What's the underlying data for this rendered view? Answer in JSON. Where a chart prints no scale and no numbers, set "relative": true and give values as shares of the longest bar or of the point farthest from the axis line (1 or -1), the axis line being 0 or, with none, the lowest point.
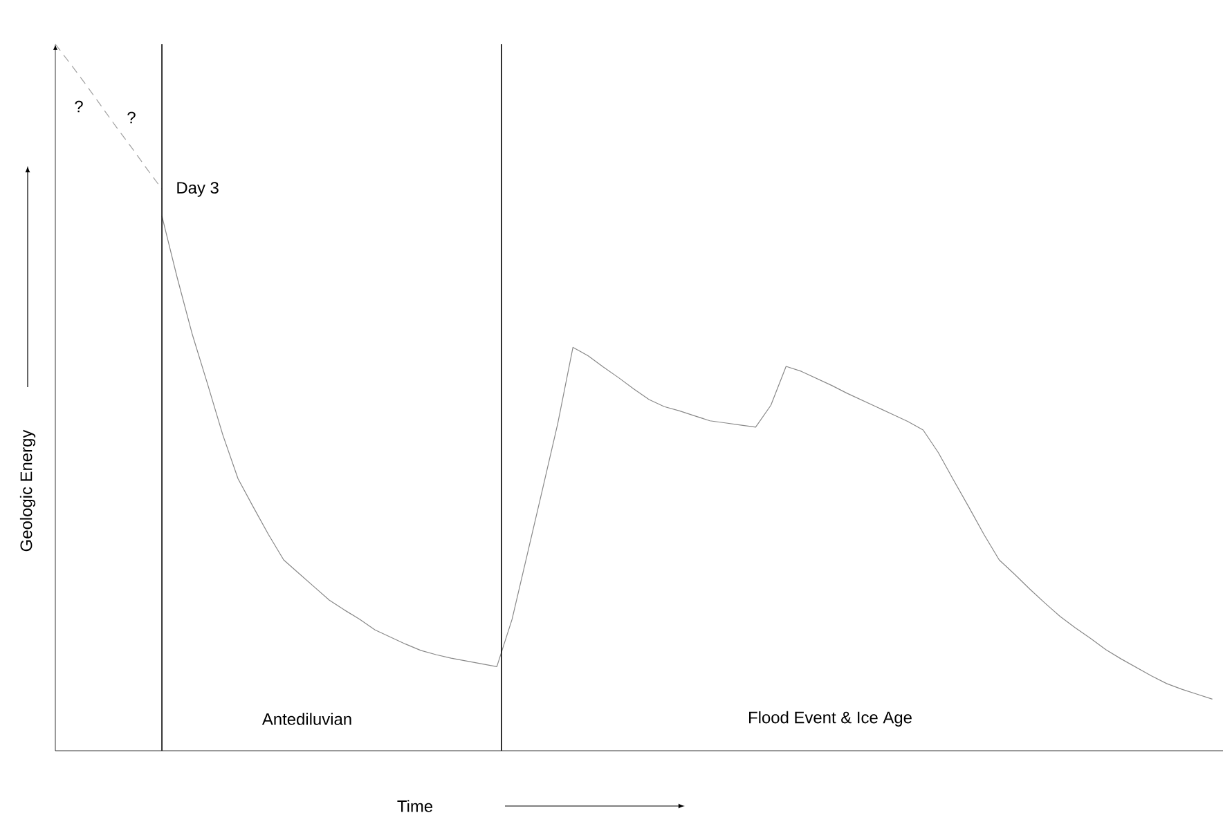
{
  "chart_data": {
    "type": "line",
    "relative": true,
    "xlabel": "Time",
    "ylabel": "Geologic Energy",
    "categories": [
      null,
      null,
      null,
      null,
      null,
      null,
      null,
      null,
      null,
      null,
      null,
      null,
      null,
      null,
      null,
      null,
      null,
      null,
      null,
      null,
      null,
      null,
      null,
      null,
      null,
      null,
      null,
      null,
      null,
      null,
      null,
      null,
      null,
      null,
      null,
      null,
      null,
      null,
      null,
      null,
      null,
      null,
      null,
      null,
      null,
      null,
      null,
      null,
      null,
      null,
      null,
      null,
      null,
      null,
      null,
      null,
      null,
      null,
      null,
      null,
      null,
      null,
      null,
      null,
      null,
      null,
      null,
      null,
      null,
      null,
      null,
      null,
      null,
      null,
      null,
      null,
      null
    ],
    "series": [
      {
        "color": "#a0a0a0",
        "line_style": "dashed",
        "values": [
          1.0,
          0.972,
          0.943,
          0.913,
          0.883,
          0.854,
          0.824,
          0.795,
          null,
          null,
          null,
          null,
          null,
          null,
          null,
          null,
          null,
          null,
          null,
          null,
          null,
          null,
          null,
          null,
          null,
          null,
          null,
          null,
          null,
          null,
          null,
          null,
          null,
          null,
          null,
          null,
          null,
          null,
          null,
          null,
          null,
          null,
          null,
          null,
          null,
          null,
          null,
          null,
          null,
          null,
          null,
          null,
          null,
          null,
          null,
          null,
          null,
          null,
          null,
          null,
          null,
          null,
          null,
          null,
          null,
          null,
          null,
          null,
          null,
          null,
          null,
          null,
          null,
          null,
          null,
          null,
          null
        ]
      },
      {
        "color": "#888888",
        "line_style": "solid",
        "values": [
          null,
          null,
          null,
          null,
          null,
          null,
          null,
          0.757,
          0.67,
          0.589,
          0.519,
          0.447,
          0.385,
          0.345,
          0.306,
          0.27,
          0.251,
          0.232,
          0.213,
          0.199,
          0.186,
          0.171,
          0.161,
          0.151,
          0.142,
          0.136,
          0.131,
          0.127,
          0.123,
          0.119,
          0.186,
          0.278,
          0.37,
          0.463,
          0.571,
          0.559,
          0.543,
          0.528,
          0.512,
          0.497,
          0.487,
          0.481,
          0.474,
          0.467,
          0.464,
          0.461,
          0.458,
          0.489,
          0.544,
          0.537,
          0.527,
          0.517,
          0.506,
          0.496,
          0.486,
          0.476,
          0.466,
          0.454,
          0.422,
          0.383,
          0.345,
          0.306,
          0.27,
          0.25,
          0.229,
          0.209,
          0.19,
          0.174,
          0.159,
          0.143,
          0.13,
          0.118,
          0.106,
          0.095,
          0.087,
          0.08,
          0.073
        ]
      }
    ],
    "annotations": [
      "Day 3",
      "?",
      "?",
      "Antediluvian",
      "Flood Event & Ice Age"
    ]
  }
}
